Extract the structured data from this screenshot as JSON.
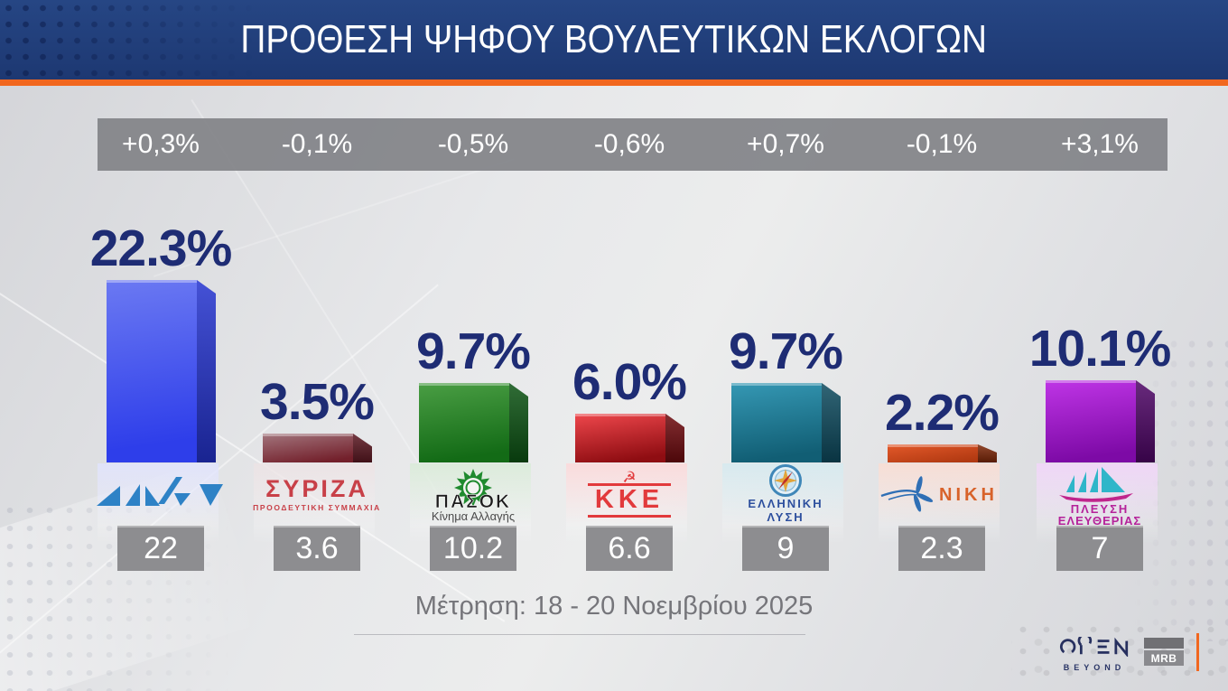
{
  "header": {
    "title": "ΠΡΟΘΕΣΗ ΨΗΦΟΥ ΒΟΥΛΕΥΤΙΚΩΝ ΕΚΛΟΓΩΝ"
  },
  "footer": {
    "measurement_note": "Μέτρηση: 18 - 20 Νοεμβρίου 2025",
    "open_logo_subtext": "BEYOND",
    "mrb_logo_text": "MRB"
  },
  "colors": {
    "header_navy": "#1d3872",
    "accent_orange": "#f1671f",
    "percent_text_navy": "#1e2c74",
    "band_gray": "#808185",
    "prev_box_gray": "#8d8d90"
  },
  "chart_data": {
    "type": "bar",
    "title": "ΠΡΟΘΕΣΗ ΨΗΦΟΥ ΒΟΥΛΕΥΤΙΚΩΝ ΕΚΛΟΓΩΝ",
    "subtitle": "Μέτρηση: 18 - 20 Νοεμβρίου 2025",
    "unit": "percent",
    "ylim": [
      0,
      25
    ],
    "grid": false,
    "legend": false,
    "categories": [
      "ΝΔ",
      "ΣΥΡΙΖΑ",
      "ΠΑΣΟΚ",
      "ΚΚΕ",
      "ΕΛΛΗΝΙΚΗ ΛΥΣΗ",
      "ΝΙΚΗ",
      "ΠΛΕΥΣΗ ΕΛΕΥΘΕΡΙΑΣ"
    ],
    "values": [
      22.3,
      3.5,
      9.7,
      6.0,
      9.7,
      2.2,
      10.1
    ],
    "changes": [
      "+0,3%",
      "-0,1%",
      "-0,5%",
      "-0,6%",
      "+0,7%",
      "-0,1%",
      "+3,1%"
    ],
    "previous_values": [
      22,
      3.6,
      10.2,
      6.6,
      9,
      2.3,
      7
    ],
    "parties": [
      {
        "name": "ΝΔ",
        "value": 22.3,
        "value_label": "22.3%",
        "change_label": "+0,3%",
        "previous_label": "22",
        "bar_color_top": "#6b79f2",
        "bar_color_bottom": "#2e3eea",
        "bar_color_side": "#2433cf"
      },
      {
        "name": "ΣΥΡΙΖΑ",
        "value": 3.5,
        "value_label": "3.5%",
        "change_label": "-0,1%",
        "previous_label": "3.6",
        "logo_line1": "ΣΥΡΙΖΑ",
        "logo_line2": "ΠΡΟΟΔΕΥΤΙΚΗ ΣΥΜΜΑΧΙΑ",
        "bar_color_top": "#a3767e",
        "bar_color_bottom": "#73202b",
        "bar_color_side": "#5c1822"
      },
      {
        "name": "ΠΑΣΟΚ",
        "value": 9.7,
        "value_label": "9.7%",
        "change_label": "-0,5%",
        "previous_label": "10.2",
        "logo_line1": "ΠΑΣΟΚ",
        "logo_line2": "Κίνημα Αλλαγής",
        "bar_color_top": "#4a9e44",
        "bar_color_bottom": "#136b16",
        "bar_color_side": "#0c5313"
      },
      {
        "name": "ΚΚΕ",
        "value": 6.0,
        "value_label": "6.0%",
        "change_label": "-0,6%",
        "previous_label": "6.6",
        "logo_line1": "ΚΚΕ",
        "bar_color_top": "#ef474c",
        "bar_color_bottom": "#8f0d12",
        "bar_color_side": "#6e0a0e"
      },
      {
        "name": "ΕΛΛΗΝΙΚΗ ΛΥΣΗ",
        "value": 9.7,
        "value_label": "9.7%",
        "change_label": "+0,7%",
        "previous_label": "9",
        "logo_line1": "ΕΛΛΗΝΙΚΗ",
        "logo_line2": "ΛΥΣΗ",
        "bar_color_top": "#3598b4",
        "bar_color_bottom": "#115e74",
        "bar_color_side": "#0d4a5e"
      },
      {
        "name": "ΝΙΚΗ",
        "value": 2.2,
        "value_label": "2.2%",
        "change_label": "-0,1%",
        "previous_label": "2.3",
        "logo_line1": "ΝΙΚΗ",
        "bar_color_top": "#e4592a",
        "bar_color_bottom": "#b23a12",
        "bar_color_side": "#7e2708"
      },
      {
        "name": "ΠΛΕΥΣΗ ΕΛΕΥΘΕΡΙΑΣ",
        "value": 10.1,
        "value_label": "10.1%",
        "change_label": "+3,1%",
        "previous_label": "7",
        "logo_line1": "ΠΛΕΥΣΗ",
        "logo_line2": "ΕΛΕΥΘΕΡΙΑΣ",
        "bar_color_top": "#bf35e6",
        "bar_color_bottom": "#7d0aa6",
        "bar_color_side": "#4e0566"
      }
    ]
  }
}
